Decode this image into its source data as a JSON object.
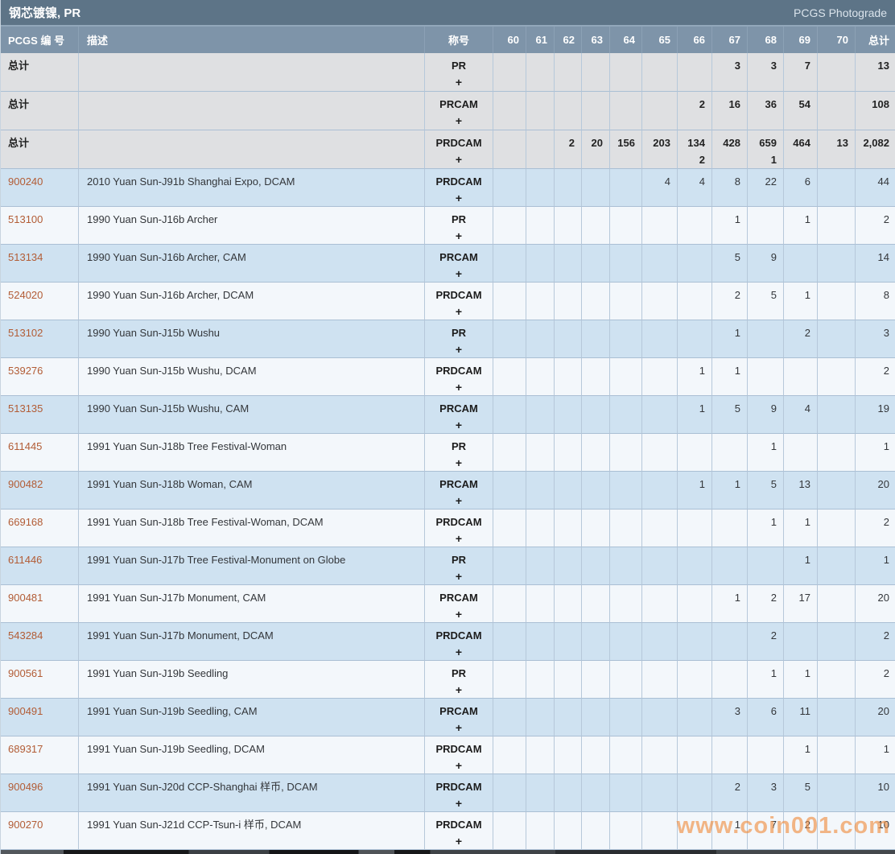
{
  "title": "钢芯镀镍, PR",
  "photograde_label": "PCGS Photograde",
  "watermark": "www.coin001.com",
  "colors": {
    "titlebar_bg": "#5d7487",
    "header_bg": "#7e94a9",
    "total_row_bg": "#dfe0e2",
    "row_blue": "#cfe2f1",
    "row_white": "#f3f7fb",
    "grid_border": "#b6c8da",
    "link": "#b25c35",
    "watermark_orange": "#f08c3c"
  },
  "columns": {
    "number": "PCGS 编 号",
    "description": "描述",
    "designation": "称号",
    "grades": [
      "60",
      "61",
      "62",
      "63",
      "64",
      "65",
      "66",
      "67",
      "68",
      "69",
      "70"
    ],
    "total": "总计"
  },
  "table": {
    "rows": [
      {
        "kind": "total",
        "number": "总计",
        "description": "",
        "designation": "PR",
        "plus": "+",
        "counts": [
          "",
          "",
          "",
          "",
          "",
          "",
          "",
          "3",
          "3",
          "7",
          "",
          "13"
        ],
        "plus_counts": [
          "",
          "",
          "",
          "",
          "",
          "",
          "",
          "",
          "",
          "",
          "",
          ""
        ]
      },
      {
        "kind": "total",
        "number": "总计",
        "description": "",
        "designation": "PRCAM",
        "plus": "+",
        "counts": [
          "",
          "",
          "",
          "",
          "",
          "",
          "2",
          "16",
          "36",
          "54",
          "",
          "108"
        ],
        "plus_counts": [
          "",
          "",
          "",
          "",
          "",
          "",
          "",
          "",
          "",
          "",
          "",
          ""
        ]
      },
      {
        "kind": "total",
        "number": "总计",
        "description": "",
        "designation": "PRDCAM",
        "plus": "+",
        "counts": [
          "",
          "",
          "2",
          "20",
          "156",
          "203",
          "134",
          "428",
          "659",
          "464",
          "13",
          "2,082"
        ],
        "plus_counts": [
          "",
          "",
          "",
          "",
          "",
          "",
          "2",
          "",
          "1",
          "",
          "",
          ""
        ]
      },
      {
        "kind": "data",
        "number": "900240",
        "description": "2010 Yuan Sun-J91b Shanghai Expo, DCAM",
        "designation": "PRDCAM",
        "plus": "+",
        "counts": [
          "",
          "",
          "",
          "",
          "",
          "4",
          "4",
          "8",
          "22",
          "6",
          "",
          "44"
        ],
        "plus_counts": [
          "",
          "",
          "",
          "",
          "",
          "",
          "",
          "",
          "",
          "",
          "",
          ""
        ]
      },
      {
        "kind": "data",
        "number": "513100",
        "description": "1990 Yuan Sun-J16b Archer",
        "designation": "PR",
        "plus": "+",
        "counts": [
          "",
          "",
          "",
          "",
          "",
          "",
          "",
          "1",
          "",
          "1",
          "",
          "2"
        ],
        "plus_counts": [
          "",
          "",
          "",
          "",
          "",
          "",
          "",
          "",
          "",
          "",
          "",
          ""
        ]
      },
      {
        "kind": "data",
        "number": "513134",
        "description": "1990 Yuan Sun-J16b Archer, CAM",
        "designation": "PRCAM",
        "plus": "+",
        "counts": [
          "",
          "",
          "",
          "",
          "",
          "",
          "",
          "5",
          "9",
          "",
          "",
          "14"
        ],
        "plus_counts": [
          "",
          "",
          "",
          "",
          "",
          "",
          "",
          "",
          "",
          "",
          "",
          ""
        ]
      },
      {
        "kind": "data",
        "number": "524020",
        "description": "1990 Yuan Sun-J16b Archer, DCAM",
        "designation": "PRDCAM",
        "plus": "+",
        "counts": [
          "",
          "",
          "",
          "",
          "",
          "",
          "",
          "2",
          "5",
          "1",
          "",
          "8"
        ],
        "plus_counts": [
          "",
          "",
          "",
          "",
          "",
          "",
          "",
          "",
          "",
          "",
          "",
          ""
        ]
      },
      {
        "kind": "data",
        "number": "513102",
        "description": "1990 Yuan Sun-J15b Wushu",
        "designation": "PR",
        "plus": "+",
        "counts": [
          "",
          "",
          "",
          "",
          "",
          "",
          "",
          "1",
          "",
          "2",
          "",
          "3"
        ],
        "plus_counts": [
          "",
          "",
          "",
          "",
          "",
          "",
          "",
          "",
          "",
          "",
          "",
          ""
        ]
      },
      {
        "kind": "data",
        "number": "539276",
        "description": "1990 Yuan Sun-J15b Wushu, DCAM",
        "designation": "PRDCAM",
        "plus": "+",
        "counts": [
          "",
          "",
          "",
          "",
          "",
          "",
          "1",
          "1",
          "",
          "",
          "",
          "2"
        ],
        "plus_counts": [
          "",
          "",
          "",
          "",
          "",
          "",
          "",
          "",
          "",
          "",
          "",
          ""
        ]
      },
      {
        "kind": "data",
        "number": "513135",
        "description": "1990 Yuan Sun-J15b Wushu, CAM",
        "designation": "PRCAM",
        "plus": "+",
        "counts": [
          "",
          "",
          "",
          "",
          "",
          "",
          "1",
          "5",
          "9",
          "4",
          "",
          "19"
        ],
        "plus_counts": [
          "",
          "",
          "",
          "",
          "",
          "",
          "",
          "",
          "",
          "",
          "",
          ""
        ]
      },
      {
        "kind": "data",
        "number": "611445",
        "description": "1991 Yuan Sun-J18b Tree Festival-Woman",
        "designation": "PR",
        "plus": "+",
        "counts": [
          "",
          "",
          "",
          "",
          "",
          "",
          "",
          "",
          "1",
          "",
          "",
          "1"
        ],
        "plus_counts": [
          "",
          "",
          "",
          "",
          "",
          "",
          "",
          "",
          "",
          "",
          "",
          ""
        ]
      },
      {
        "kind": "data",
        "number": "900482",
        "description": "1991 Yuan Sun-J18b Woman, CAM",
        "designation": "PRCAM",
        "plus": "+",
        "counts": [
          "",
          "",
          "",
          "",
          "",
          "",
          "1",
          "1",
          "5",
          "13",
          "",
          "20"
        ],
        "plus_counts": [
          "",
          "",
          "",
          "",
          "",
          "",
          "",
          "",
          "",
          "",
          "",
          ""
        ]
      },
      {
        "kind": "data",
        "number": "669168",
        "description": "1991 Yuan Sun-J18b Tree Festival-Woman, DCAM",
        "designation": "PRDCAM",
        "plus": "+",
        "counts": [
          "",
          "",
          "",
          "",
          "",
          "",
          "",
          "",
          "1",
          "1",
          "",
          "2"
        ],
        "plus_counts": [
          "",
          "",
          "",
          "",
          "",
          "",
          "",
          "",
          "",
          "",
          "",
          ""
        ]
      },
      {
        "kind": "data",
        "number": "611446",
        "description": "1991 Yuan Sun-J17b Tree Festival-Monument on Globe",
        "designation": "PR",
        "plus": "+",
        "counts": [
          "",
          "",
          "",
          "",
          "",
          "",
          "",
          "",
          "",
          "1",
          "",
          "1"
        ],
        "plus_counts": [
          "",
          "",
          "",
          "",
          "",
          "",
          "",
          "",
          "",
          "",
          "",
          ""
        ]
      },
      {
        "kind": "data",
        "number": "900481",
        "description": "1991 Yuan Sun-J17b Monument, CAM",
        "designation": "PRCAM",
        "plus": "+",
        "counts": [
          "",
          "",
          "",
          "",
          "",
          "",
          "",
          "1",
          "2",
          "17",
          "",
          "20"
        ],
        "plus_counts": [
          "",
          "",
          "",
          "",
          "",
          "",
          "",
          "",
          "",
          "",
          "",
          ""
        ]
      },
      {
        "kind": "data",
        "number": "543284",
        "description": "1991 Yuan Sun-J17b Monument, DCAM",
        "designation": "PRDCAM",
        "plus": "+",
        "counts": [
          "",
          "",
          "",
          "",
          "",
          "",
          "",
          "",
          "2",
          "",
          "",
          "2"
        ],
        "plus_counts": [
          "",
          "",
          "",
          "",
          "",
          "",
          "",
          "",
          "",
          "",
          "",
          ""
        ]
      },
      {
        "kind": "data",
        "number": "900561",
        "description": "1991 Yuan Sun-J19b Seedling",
        "designation": "PR",
        "plus": "+",
        "counts": [
          "",
          "",
          "",
          "",
          "",
          "",
          "",
          "",
          "1",
          "1",
          "",
          "2"
        ],
        "plus_counts": [
          "",
          "",
          "",
          "",
          "",
          "",
          "",
          "",
          "",
          "",
          "",
          ""
        ]
      },
      {
        "kind": "data",
        "number": "900491",
        "description": "1991 Yuan Sun-J19b Seedling, CAM",
        "designation": "PRCAM",
        "plus": "+",
        "counts": [
          "",
          "",
          "",
          "",
          "",
          "",
          "",
          "3",
          "6",
          "11",
          "",
          "20"
        ],
        "plus_counts": [
          "",
          "",
          "",
          "",
          "",
          "",
          "",
          "",
          "",
          "",
          "",
          ""
        ]
      },
      {
        "kind": "data",
        "number": "689317",
        "description": "1991 Yuan Sun-J19b Seedling, DCAM",
        "designation": "PRDCAM",
        "plus": "+",
        "counts": [
          "",
          "",
          "",
          "",
          "",
          "",
          "",
          "",
          "",
          "1",
          "",
          "1"
        ],
        "plus_counts": [
          "",
          "",
          "",
          "",
          "",
          "",
          "",
          "",
          "",
          "",
          "",
          ""
        ]
      },
      {
        "kind": "data",
        "number": "900496",
        "description": "1991 Yuan Sun-J20d CCP-Shanghai 样币, DCAM",
        "designation": "PRDCAM",
        "plus": "+",
        "counts": [
          "",
          "",
          "",
          "",
          "",
          "",
          "",
          "2",
          "3",
          "5",
          "",
          "10"
        ],
        "plus_counts": [
          "",
          "",
          "",
          "",
          "",
          "",
          "",
          "",
          "",
          "",
          "",
          ""
        ]
      },
      {
        "kind": "data",
        "number": "900270",
        "description": "1991 Yuan Sun-J21d CCP-Tsun-i 样币, DCAM",
        "designation": "PRDCAM",
        "plus": "+",
        "counts": [
          "",
          "",
          "",
          "",
          "",
          "",
          "",
          "1",
          "7",
          "2",
          "",
          "10"
        ],
        "plus_counts": [
          "",
          "",
          "",
          "",
          "",
          "",
          "",
          "",
          "",
          "",
          "",
          ""
        ]
      }
    ]
  }
}
